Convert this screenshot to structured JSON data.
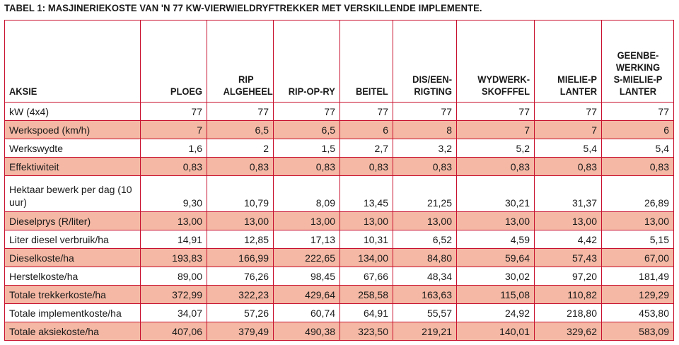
{
  "caption": "TABEL 1: MASJINERIEKOSTE VAN 'N 77 KW-VIERWIELDRYFTREKKER MET VERSKILLENDE IMPLEMENTE.",
  "headers": [
    "AKSIE",
    "PLOEG",
    "RIP ALGEHEEL",
    "RIP-OP-RY",
    "BEITEL",
    "DIS/EEN-RIGTING",
    "WYDWERK-SKOFFFEL",
    "MIELIE-PLANTER",
    "GEENBE-WERKINGS-MIELIE-PLANTER"
  ],
  "rows": [
    {
      "label": "kW (4x4)",
      "values": [
        "77",
        "77",
        "77",
        "77",
        "77",
        "77",
        "77",
        "77"
      ]
    },
    {
      "label": "Werkspoed (km/h)",
      "values": [
        "7",
        "6,5",
        "6,5",
        "6",
        "8",
        "7",
        "7",
        "6"
      ]
    },
    {
      "label": "Werkswydte",
      "values": [
        "1,6",
        "2",
        "1,5",
        "2,7",
        "3,2",
        "5,2",
        "5,4",
        "5,4"
      ]
    },
    {
      "label": "Effektiwiteit",
      "values": [
        "0,83",
        "0,83",
        "0,83",
        "0,83",
        "0,83",
        "0,83",
        "0,83",
        "0,83"
      ]
    },
    {
      "label": "Hektaar bewerk per dag (10 uur)",
      "values": [
        "9,30",
        "10,79",
        "8,09",
        "13,45",
        "21,25",
        "30,21",
        "31,37",
        "26,89"
      ]
    },
    {
      "label": "Dieselprys (R/liter)",
      "values": [
        "13,00",
        "13,00",
        "13,00",
        "13,00",
        "13,00",
        "13,00",
        "13,00",
        "13,00"
      ]
    },
    {
      "label": "Liter diesel verbruik/ha",
      "values": [
        "14,91",
        "12,85",
        "17,13",
        "10,31",
        "6,52",
        "4,59",
        "4,42",
        "5,15"
      ]
    },
    {
      "label": "Dieselkoste/ha",
      "values": [
        "193,83",
        "166,99",
        "222,65",
        "134,00",
        "84,80",
        "59,64",
        "57,43",
        "67,00"
      ]
    },
    {
      "label": "Herstelkoste/ha",
      "values": [
        "89,00",
        "76,26",
        "98,45",
        "67,66",
        "48,34",
        "30,02",
        "97,20",
        "181,49"
      ]
    },
    {
      "label": "Totale trekkerkoste/ha",
      "values": [
        "372,99",
        "322,23",
        "429,64",
        "258,58",
        "163,63",
        "115,08",
        "110,82",
        "129,29"
      ]
    },
    {
      "label": "Totale implementkoste/ha",
      "values": [
        "34,07",
        "57,26",
        "60,74",
        "64,91",
        "55,57",
        "24,92",
        "218,80",
        "453,80"
      ]
    },
    {
      "label": "Totale aksiekoste/ha",
      "values": [
        "407,06",
        "379,49",
        "490,38",
        "323,50",
        "219,21",
        "140,01",
        "329,62",
        "583,09"
      ]
    }
  ],
  "colors": {
    "border": "#c8102e",
    "shade": "#f4b8a4"
  }
}
